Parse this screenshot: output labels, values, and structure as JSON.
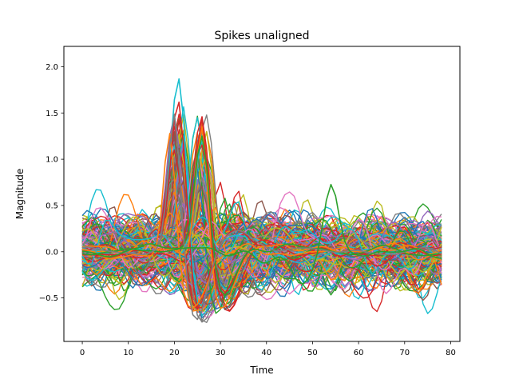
{
  "chart_data": {
    "type": "line",
    "title": "Spikes unaligned",
    "xlabel": "Time",
    "ylabel": "Magnitude",
    "xlim": [
      -4,
      82
    ],
    "ylim": [
      -0.97,
      2.22
    ],
    "xticks": [
      0,
      10,
      20,
      30,
      40,
      50,
      60,
      70,
      80
    ],
    "xtick_labels": [
      "0",
      "10",
      "20",
      "30",
      "40",
      "50",
      "60",
      "70",
      "80"
    ],
    "yticks": [
      -0.5,
      0.0,
      0.5,
      1.0,
      1.5,
      2.0
    ],
    "ytick_labels": [
      "−0.5",
      "0.0",
      "0.5",
      "1.0",
      "1.5",
      "2.0"
    ],
    "grid": false,
    "legend": "none",
    "samples_per_trace": 79,
    "x_range": [
      0,
      78
    ],
    "approx_trace_count": 400,
    "colors": [
      "#1f77b4",
      "#ff7f0e",
      "#2ca02c",
      "#d62728",
      "#9467bd",
      "#8c564b",
      "#e377c2",
      "#7f7f7f",
      "#bcbd22",
      "#17becf"
    ],
    "series": [
      {
        "peak_time": 21,
        "peak_value": 2.07,
        "trough_time": 25,
        "trough_value": -0.8,
        "color": "#17becf"
      },
      {
        "peak_time": 21,
        "peak_value": 1.9,
        "trough_time": 25,
        "trough_value": -0.75,
        "color": "#d62728"
      },
      {
        "peak_time": 26,
        "peak_value": 1.75,
        "trough_time": 30,
        "trough_value": -0.6,
        "color": "#d62728"
      },
      {
        "peak_time": 26,
        "peak_value": 1.68,
        "trough_time": 30,
        "trough_value": -0.62,
        "color": "#ff7f0e"
      },
      {
        "peak_time": 19,
        "peak_value": 1.47,
        "trough_time": 24,
        "trough_value": -0.65,
        "color": "#ff7f0e"
      },
      {
        "peak_time": 26,
        "peak_value": 1.3,
        "trough_time": 31,
        "trough_value": -0.55,
        "color": "#2ca02c"
      },
      {
        "peak_time": 20,
        "peak_value": 1.6,
        "trough_time": 25,
        "trough_value": -0.83,
        "color": "#7f7f7f"
      },
      {
        "peak_time": 54,
        "peak_value": 0.66,
        "trough_time": 48,
        "trough_value": -0.3,
        "color": "#2ca02c"
      }
    ]
  }
}
